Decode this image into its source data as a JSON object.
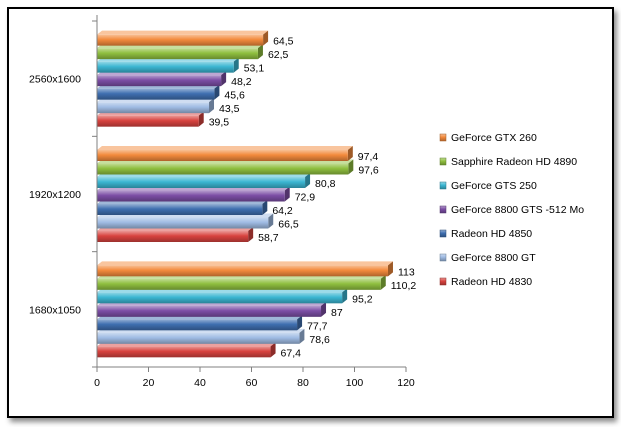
{
  "chart_data": {
    "type": "bar",
    "orientation": "horizontal",
    "title": "",
    "xlabel": "",
    "ylabel": "",
    "categories": [
      "2560x1600",
      "1920x1200",
      "1680x1050"
    ],
    "xlim": [
      0,
      120
    ],
    "xticks": [
      0,
      20,
      40,
      60,
      80,
      100,
      120
    ],
    "grid": false,
    "legend_position": "right",
    "series": [
      {
        "name": "GeForce GTX 260",
        "color": "#f38a3c",
        "values": [
          64.5,
          97.4,
          113
        ],
        "labels": [
          "64,5",
          "97,4",
          "113"
        ]
      },
      {
        "name": "Sapphire Radeon HD 4890",
        "color": "#8fbf3f",
        "values": [
          62.5,
          97.6,
          110.2
        ],
        "labels": [
          "62,5",
          "97,6",
          "110,2"
        ]
      },
      {
        "name": "GeForce GTS 250",
        "color": "#3bb6d2",
        "values": [
          53.1,
          80.8,
          95.2
        ],
        "labels": [
          "53,1",
          "80,8",
          "95,2"
        ]
      },
      {
        "name": "GeForce 8800 GTS -512 Mo",
        "color": "#7c4ea5",
        "values": [
          48.2,
          72.9,
          87
        ],
        "labels": [
          "48,2",
          "72,9",
          "87"
        ]
      },
      {
        "name": "Radeon HD 4850",
        "color": "#3f6fb0",
        "values": [
          45.6,
          64.2,
          77.7
        ],
        "labels": [
          "45,6",
          "64,2",
          "77,7"
        ]
      },
      {
        "name": "GeForce 8800 GT",
        "color": "#9fbbe3",
        "values": [
          43.5,
          66.5,
          78.6
        ],
        "labels": [
          "43,5",
          "66,5",
          "78,6"
        ]
      },
      {
        "name": "Radeon HD 4830",
        "color": "#d8433f",
        "values": [
          39.5,
          58.7,
          67.4
        ],
        "labels": [
          "39,5",
          "58,7",
          "67,4"
        ]
      }
    ]
  }
}
